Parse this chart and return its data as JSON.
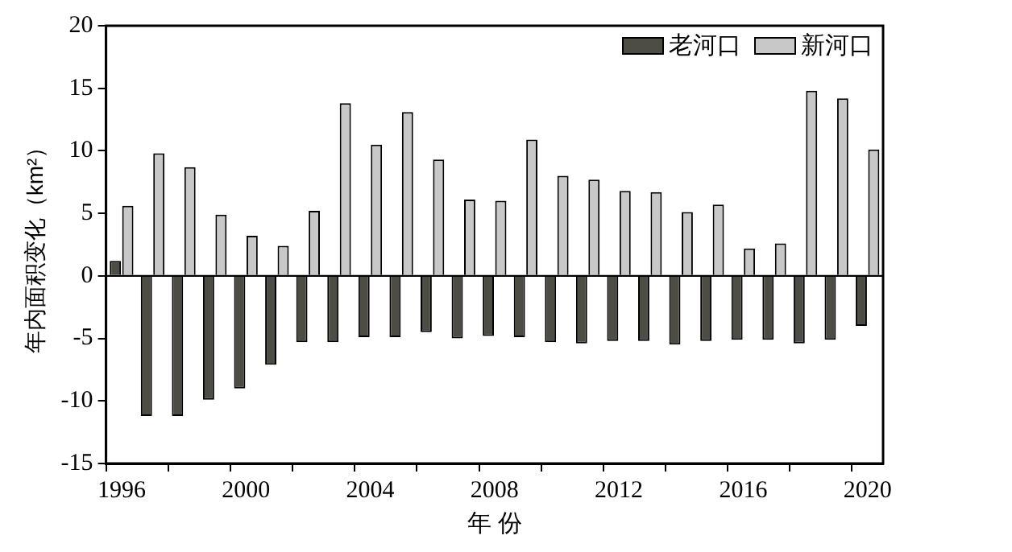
{
  "chart_data": {
    "type": "bar",
    "xlabel": "年 份",
    "ylabel": "年内面积变化（km²）",
    "categories": [
      "1996",
      null,
      null,
      null,
      "2000",
      null,
      null,
      null,
      "2004",
      null,
      null,
      null,
      "2008",
      null,
      null,
      null,
      "2012",
      null,
      null,
      null,
      "2016",
      null,
      null,
      null,
      "2020"
    ],
    "series": [
      {
        "name": "老河口",
        "color": "#4d4d45",
        "values": [
          1.2,
          -11.2,
          -11.2,
          -9.9,
          -9.0,
          -7.1,
          -5.3,
          -5.3,
          -4.9,
          -4.9,
          -4.5,
          -5.0,
          -4.8,
          -4.9,
          -5.3,
          -5.4,
          -5.2,
          -5.2,
          -5.5,
          -5.2,
          -5.1,
          -5.1,
          -5.4,
          -5.1,
          -4.0
        ]
      },
      {
        "name": "新河口",
        "color": "#c8c8c8",
        "values": [
          5.6,
          9.8,
          8.7,
          4.9,
          3.2,
          2.4,
          5.2,
          13.8,
          10.5,
          13.1,
          9.3,
          6.1,
          6.0,
          10.9,
          8.0,
          7.7,
          6.8,
          6.7,
          5.1,
          5.7,
          2.2,
          2.6,
          14.8,
          14.2,
          10.1
        ]
      }
    ],
    "ylim": [
      -15,
      20
    ],
    "yticks": [
      -15,
      -10,
      -5,
      0,
      5,
      10,
      15,
      20
    ],
    "ref_lines": [
      {
        "axis": "y",
        "value": 0,
        "color": "#000000"
      }
    ],
    "grid": false,
    "legend": "top right"
  }
}
